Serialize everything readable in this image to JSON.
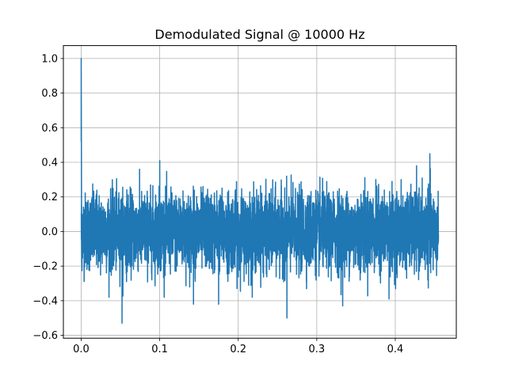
{
  "chart_data": {
    "type": "line",
    "title": "Demodulated Signal @ 10000 Hz",
    "xlabel": "",
    "ylabel": "",
    "xlim": [
      -0.0227,
      0.4777
    ],
    "ylim": [
      -0.6166,
      1.0746
    ],
    "x_ticks": [
      0.0,
      0.1,
      0.2,
      0.3,
      0.4
    ],
    "x_tick_labels": [
      "0.0",
      "0.1",
      "0.2",
      "0.3",
      "0.4"
    ],
    "y_ticks": [
      -0.6,
      -0.4,
      -0.2,
      0.0,
      0.2,
      0.4,
      0.6,
      0.8,
      1.0
    ],
    "y_tick_labels": [
      "−0.6",
      "−0.4",
      "−0.2",
      "0.0",
      "0.2",
      "0.4",
      "0.6",
      "0.8",
      "1.0"
    ],
    "grid": true,
    "legend": "none",
    "series": [
      {
        "color": "#1f77b4",
        "x_start": 0.0,
        "x_end": 0.455,
        "notes_peaks": [
          {
            "x": 0.0,
            "y": 1.0
          },
          {
            "x": 0.0,
            "y": 0.52
          },
          {
            "x": 0.052,
            "y": -0.53
          },
          {
            "x": 0.1,
            "y": 0.41
          },
          {
            "x": 0.262,
            "y": -0.5
          },
          {
            "x": 0.333,
            "y": -0.43
          },
          {
            "x": 0.444,
            "y": 0.45
          },
          {
            "x": 0.175,
            "y": -0.42
          },
          {
            "x": 0.143,
            "y": -0.42
          },
          {
            "x": 0.392,
            "y": -0.39
          }
        ],
        "envelope_approx": {
          "typical_min": -0.3,
          "typical_max": 0.3
        }
      }
    ]
  }
}
